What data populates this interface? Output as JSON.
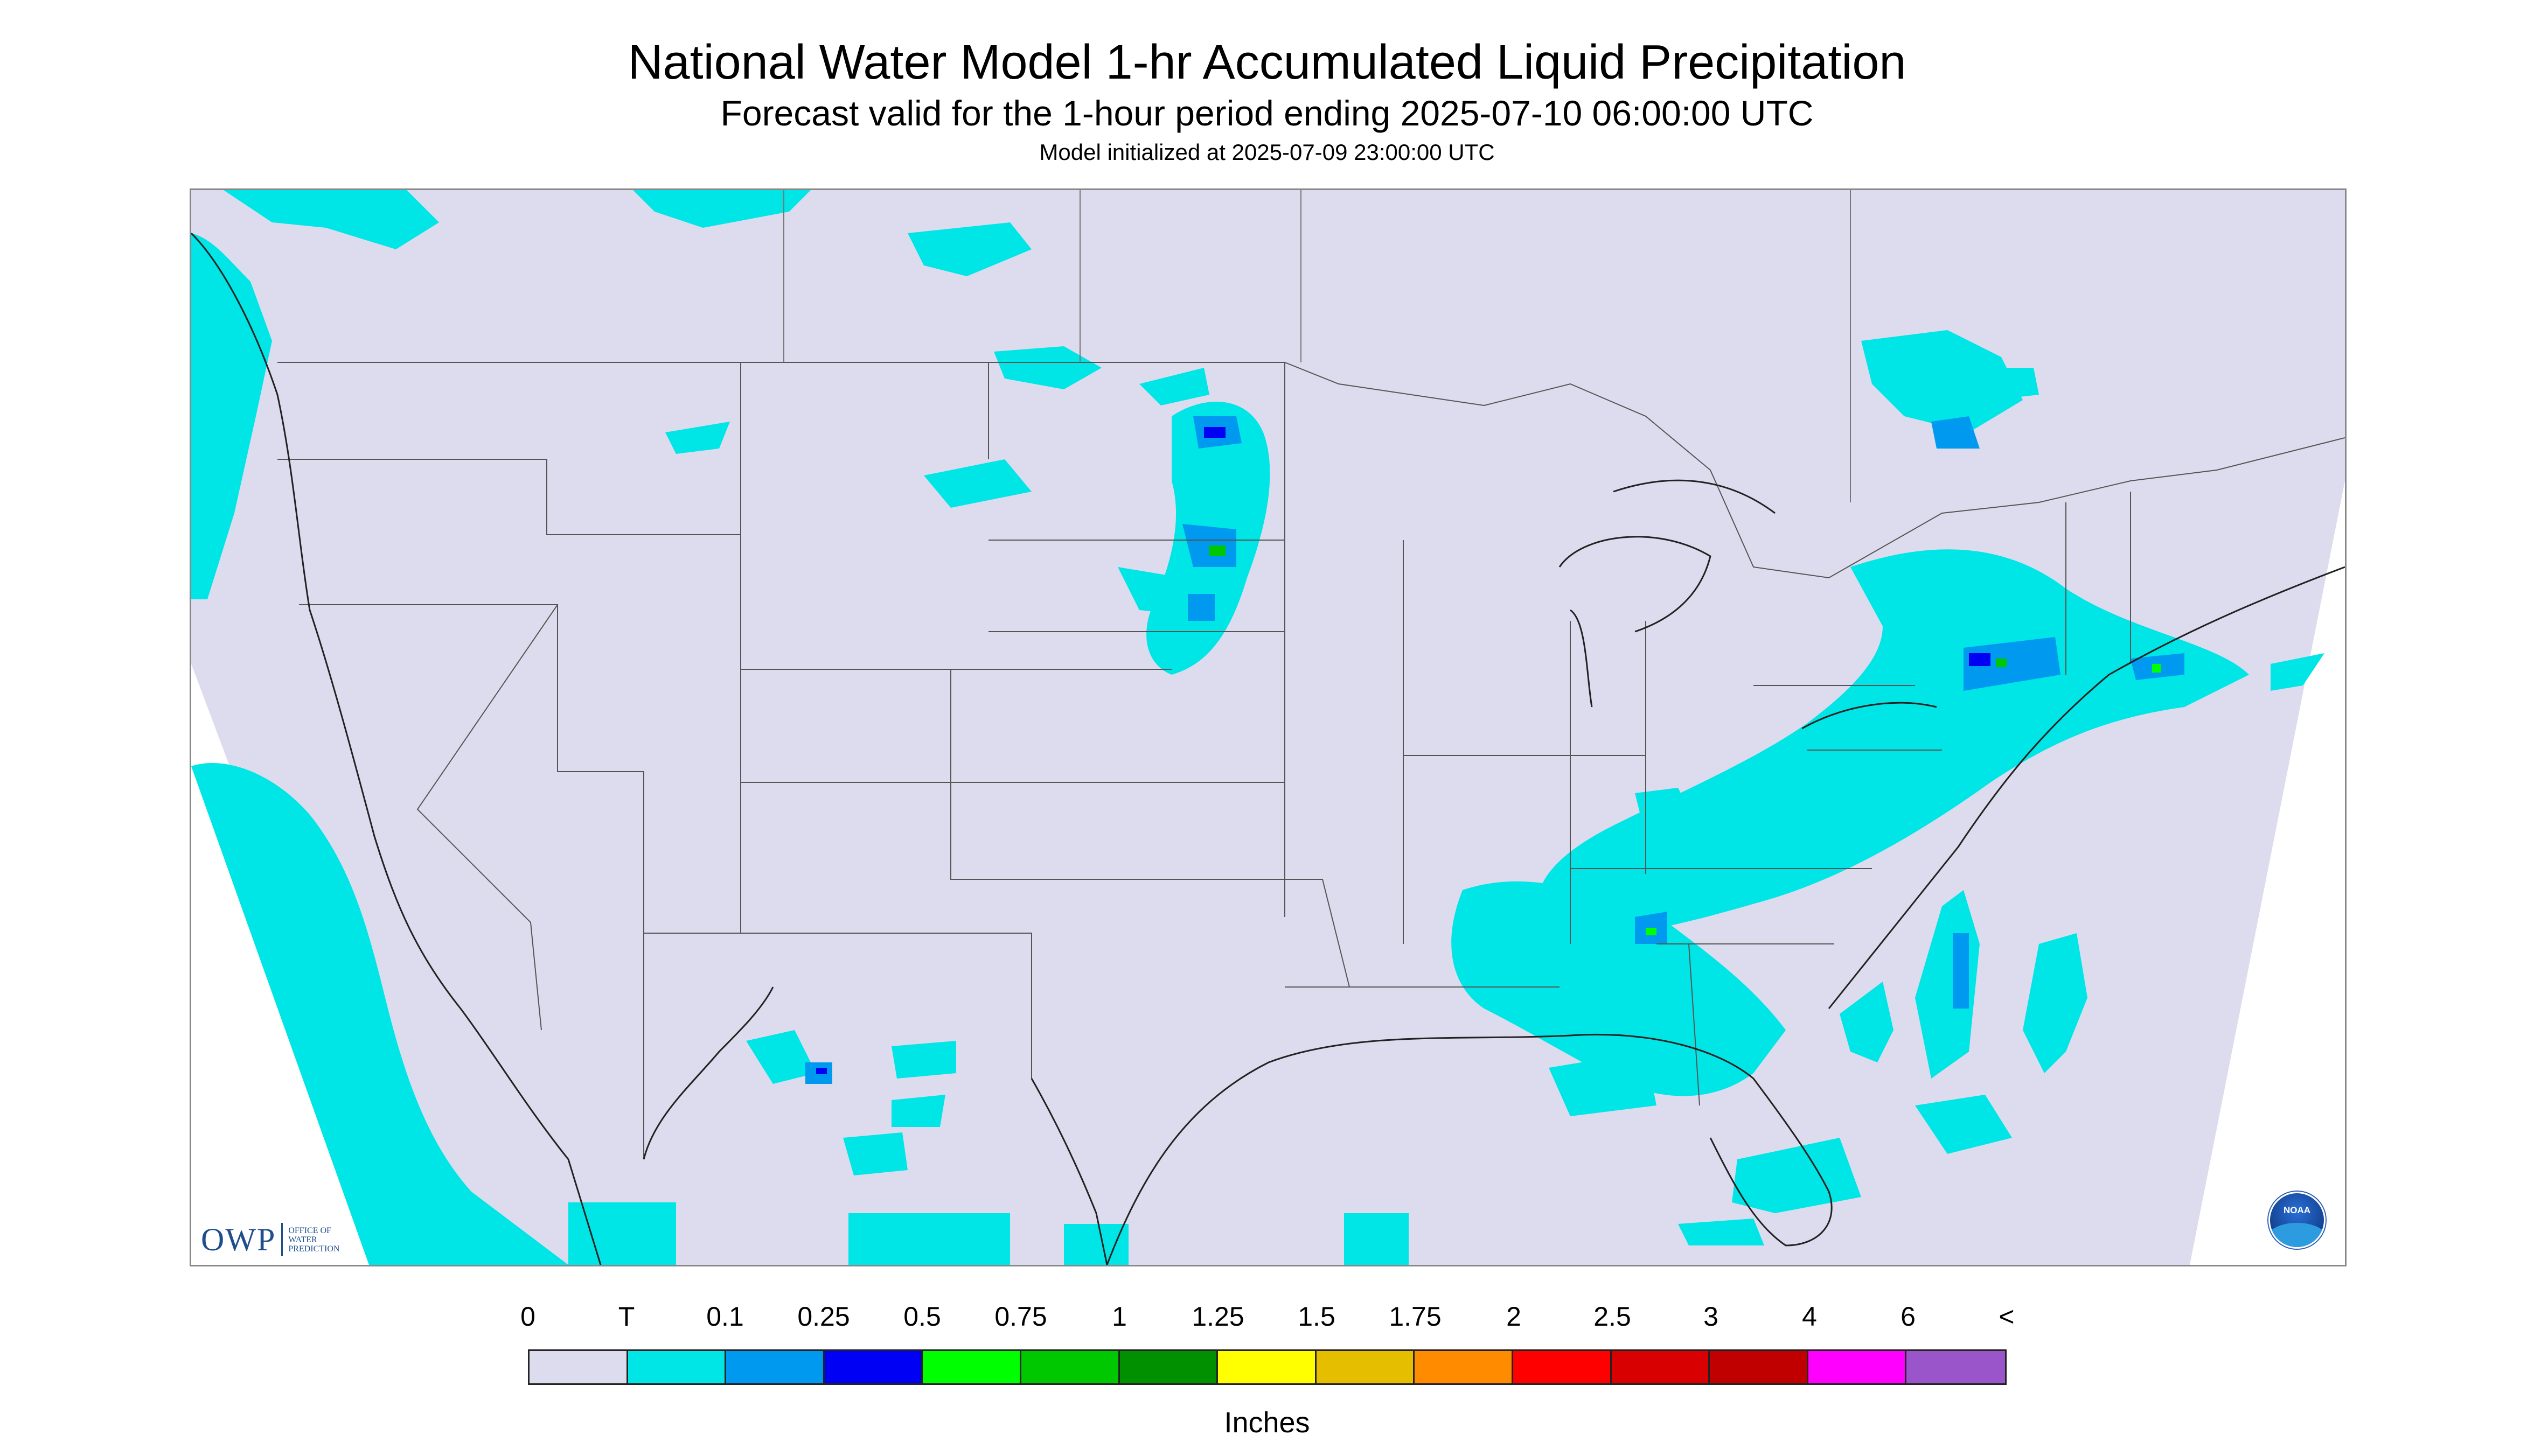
{
  "header": {
    "title": "National Water Model 1-hr Accumulated Liquid Precipitation",
    "subtitle": "Forecast valid for the 1-hour period ending 2025-07-10 06:00:00 UTC",
    "init": "Model initialized at 2025-07-09 23:00:00 UTC"
  },
  "map": {
    "background_color": "#dcdcee",
    "boundary_color": "#555555",
    "logos": {
      "owp": {
        "letters": "OWP",
        "line1": "OFFICE OF",
        "line2": "WATER",
        "line3": "PREDICTION"
      },
      "noaa": {
        "label": "NOAA"
      }
    }
  },
  "legend": {
    "ticks": [
      "0",
      "T",
      "0.1",
      "0.25",
      "0.5",
      "0.75",
      "1",
      "1.25",
      "1.5",
      "1.75",
      "2",
      "2.5",
      "3",
      "4",
      "6",
      "<"
    ],
    "colors": [
      "#dcdcee",
      "#00e5e5",
      "#0099f0",
      "#0000f5",
      "#00ff00",
      "#00c800",
      "#009000",
      "#ffff00",
      "#e6be00",
      "#ff8c00",
      "#ff0000",
      "#d80000",
      "#c00000",
      "#ff00ff",
      "#9955c9"
    ],
    "units": "Inches"
  }
}
